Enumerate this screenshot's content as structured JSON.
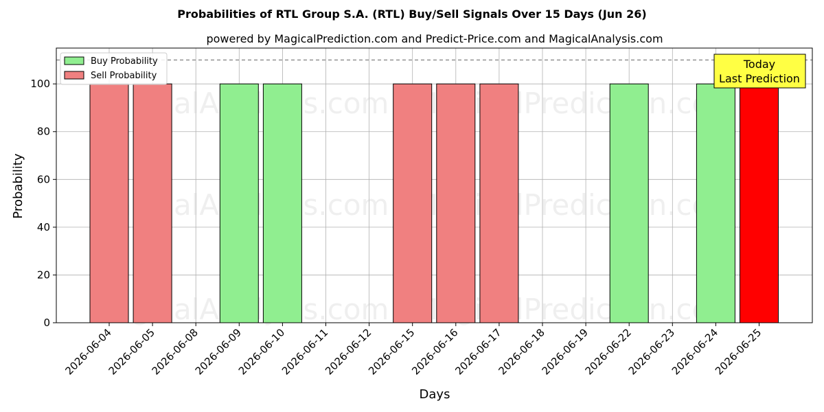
{
  "chart_data": {
    "type": "bar",
    "title": "Probabilities of RTL Group S.A. (RTL) Buy/Sell Signals Over 15 Days (Jun 26)",
    "subtitle": "powered by MagicalPrediction.com and Predict-Price.com and MagicalAnalysis.com",
    "xlabel": "Days",
    "ylabel": "Probability",
    "ylim": [
      0,
      115
    ],
    "yticks": [
      0,
      20,
      40,
      60,
      80,
      100
    ],
    "reference_line": 110,
    "grid": true,
    "legend_position": "top-left",
    "categories": [
      "2026-06-04",
      "2026-06-05",
      "2026-06-08",
      "2026-06-09",
      "2026-06-10",
      "2026-06-11",
      "2026-06-12",
      "2026-06-15",
      "2026-06-16",
      "2026-06-17",
      "2026-06-18",
      "2026-06-19",
      "2026-06-22",
      "2026-06-23",
      "2026-06-24",
      "2026-06-25"
    ],
    "series": [
      {
        "name": "Buy Probability",
        "color": "#90ee90",
        "values": [
          0,
          0,
          0,
          100,
          100,
          0,
          0,
          0,
          0,
          0,
          0,
          0,
          100,
          0,
          100,
          0
        ]
      },
      {
        "name": "Sell Probability",
        "color": "#f08080",
        "values": [
          100,
          100,
          0,
          0,
          0,
          0,
          0,
          100,
          100,
          100,
          0,
          0,
          0,
          0,
          0,
          100
        ]
      }
    ],
    "highlight": {
      "category": "2026-06-25",
      "series": "Sell Probability",
      "color": "#ff0000"
    },
    "annotation": {
      "lines": [
        "Today",
        "Last Prediction"
      ],
      "background": "#ffff44"
    },
    "watermarks": [
      "MagicalAnalysis.com",
      "MagicalPrediction.com"
    ]
  }
}
